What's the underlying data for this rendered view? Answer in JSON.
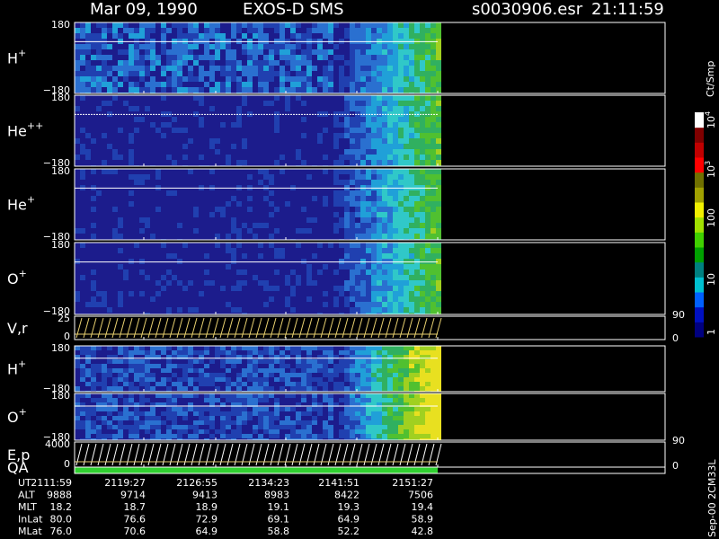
{
  "header": {
    "date": "Mar 09, 1990",
    "instrument": "EXOS-D SMS",
    "file": "s0030906.esr",
    "time": "21:11:59"
  },
  "panels": [
    {
      "label": "H",
      "sup": "+",
      "top": "180",
      "bottom": "−180"
    },
    {
      "label": "He",
      "sup": "++",
      "top": "180",
      "bottom": "−180"
    },
    {
      "label": "He",
      "sup": "+",
      "top": "180",
      "bottom": "−180"
    },
    {
      "label": "O",
      "sup": "+",
      "top": "180",
      "bottom": "−180"
    },
    {
      "label": "V,r",
      "top": "25",
      "bottom": "0",
      "right_top": "90",
      "right_bottom": "0"
    },
    {
      "label": "H",
      "sup": "+",
      "top": "180",
      "bottom": "−180"
    },
    {
      "label": "O",
      "sup": "+",
      "top": "180",
      "bottom": "−180"
    },
    {
      "label": "E,p",
      "top": "4000",
      "bottom": "0",
      "right_top": "90",
      "right_bottom": "0"
    },
    {
      "label": "QA"
    }
  ],
  "colorbar": {
    "unit": "Ct/Smp",
    "ticks": [
      {
        "base": "10",
        "exp": "4"
      },
      {
        "base": "10",
        "exp": "3"
      },
      {
        "base": "100"
      },
      {
        "base": "10"
      },
      {
        "base": "1"
      }
    ]
  },
  "footer": {
    "rows": [
      {
        "label": "UT",
        "values": [
          "2111:59",
          "2119:27",
          "2126:55",
          "2134:23",
          "2141:51",
          "2151:27"
        ]
      },
      {
        "label": "ALT",
        "values": [
          "9888",
          "9714",
          "9413",
          "8983",
          "8422",
          "7506"
        ]
      },
      {
        "label": "MLT",
        "values": [
          "18.2",
          "18.7",
          "18.9",
          "19.1",
          "19.3",
          "19.4"
        ]
      },
      {
        "label": "InLat",
        "values": [
          "80.0",
          "76.6",
          "72.9",
          "69.1",
          "64.9",
          "58.9"
        ]
      },
      {
        "label": "MLat",
        "values": [
          "76.0",
          "70.6",
          "64.9",
          "58.8",
          "52.2",
          "42.8"
        ]
      }
    ]
  },
  "side_note": "Sep-00 2CM33L"
}
